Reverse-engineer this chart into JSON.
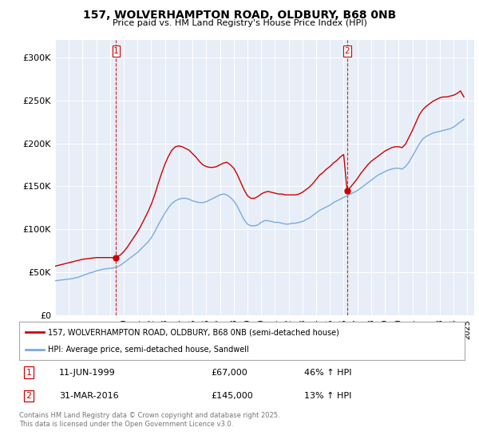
{
  "title_line1": "157, WOLVERHAMPTON ROAD, OLDBURY, B68 0NB",
  "title_line2": "Price paid vs. HM Land Registry's House Price Index (HPI)",
  "ylim": [
    0,
    320000
  ],
  "yticks": [
    0,
    50000,
    100000,
    150000,
    200000,
    250000,
    300000
  ],
  "ytick_labels": [
    "£0",
    "£50K",
    "£100K",
    "£150K",
    "£200K",
    "£250K",
    "£300K"
  ],
  "xlim_start": 1995.0,
  "xlim_end": 2025.5,
  "background_color": "#ffffff",
  "chart_bg_color": "#e8eef7",
  "grid_color": "#ffffff",
  "sale_color": "#cc0000",
  "hpi_color": "#7aaadd",
  "marker1_x": 1999.44,
  "marker1_y": 67000,
  "marker2_x": 2016.25,
  "marker2_y": 145000,
  "legend_line1": "157, WOLVERHAMPTON ROAD, OLDBURY, B68 0NB (semi-detached house)",
  "legend_line2": "HPI: Average price, semi-detached house, Sandwell",
  "footnote": "Contains HM Land Registry data © Crown copyright and database right 2025.\nThis data is licensed under the Open Government Licence v3.0.",
  "hpi_data_x": [
    1995.0,
    1995.25,
    1995.5,
    1995.75,
    1996.0,
    1996.25,
    1996.5,
    1996.75,
    1997.0,
    1997.25,
    1997.5,
    1997.75,
    1998.0,
    1998.25,
    1998.5,
    1998.75,
    1999.0,
    1999.25,
    1999.5,
    1999.75,
    2000.0,
    2000.25,
    2000.5,
    2000.75,
    2001.0,
    2001.25,
    2001.5,
    2001.75,
    2002.0,
    2002.25,
    2002.5,
    2002.75,
    2003.0,
    2003.25,
    2003.5,
    2003.75,
    2004.0,
    2004.25,
    2004.5,
    2004.75,
    2005.0,
    2005.25,
    2005.5,
    2005.75,
    2006.0,
    2006.25,
    2006.5,
    2006.75,
    2007.0,
    2007.25,
    2007.5,
    2007.75,
    2008.0,
    2008.25,
    2008.5,
    2008.75,
    2009.0,
    2009.25,
    2009.5,
    2009.75,
    2010.0,
    2010.25,
    2010.5,
    2010.75,
    2011.0,
    2011.25,
    2011.5,
    2011.75,
    2012.0,
    2012.25,
    2012.5,
    2012.75,
    2013.0,
    2013.25,
    2013.5,
    2013.75,
    2014.0,
    2014.25,
    2014.5,
    2014.75,
    2015.0,
    2015.25,
    2015.5,
    2015.75,
    2016.0,
    2016.25,
    2016.5,
    2016.75,
    2017.0,
    2017.25,
    2017.5,
    2017.75,
    2018.0,
    2018.25,
    2018.5,
    2018.75,
    2019.0,
    2019.25,
    2019.5,
    2019.75,
    2020.0,
    2020.25,
    2020.5,
    2020.75,
    2021.0,
    2021.25,
    2021.5,
    2021.75,
    2022.0,
    2022.25,
    2022.5,
    2022.75,
    2023.0,
    2023.25,
    2023.5,
    2023.75,
    2024.0,
    2024.25,
    2024.5,
    2024.75
  ],
  "hpi_data_y": [
    40000,
    40500,
    41000,
    41500,
    42000,
    42500,
    43500,
    44500,
    46000,
    47500,
    49000,
    50000,
    51500,
    52500,
    53500,
    54000,
    54500,
    55000,
    56000,
    58000,
    61000,
    64000,
    67000,
    70000,
    73000,
    77000,
    81000,
    85000,
    90000,
    97000,
    105000,
    112000,
    119000,
    125000,
    130000,
    133000,
    135000,
    136000,
    136000,
    135000,
    133000,
    132000,
    131000,
    131000,
    132000,
    134000,
    136000,
    138000,
    140000,
    141000,
    140000,
    137000,
    133000,
    127000,
    119000,
    111000,
    106000,
    104000,
    104000,
    105000,
    108000,
    110000,
    110000,
    109000,
    108000,
    108000,
    107000,
    106000,
    106000,
    107000,
    107000,
    108000,
    109000,
    111000,
    113000,
    116000,
    119000,
    122000,
    124000,
    126000,
    128000,
    131000,
    133000,
    135000,
    137000,
    139000,
    141000,
    143000,
    145000,
    148000,
    151000,
    154000,
    157000,
    160000,
    163000,
    165000,
    167000,
    169000,
    170000,
    171000,
    171000,
    170000,
    173000,
    178000,
    185000,
    192000,
    199000,
    205000,
    208000,
    210000,
    212000,
    213000,
    214000,
    215000,
    216000,
    217000,
    219000,
    222000,
    225000,
    228000
  ],
  "sale_data_x": [
    1995.0,
    1995.25,
    1995.5,
    1995.75,
    1996.0,
    1996.25,
    1996.5,
    1996.75,
    1997.0,
    1997.25,
    1997.5,
    1997.75,
    1998.0,
    1998.25,
    1998.5,
    1998.75,
    1999.0,
    1999.25,
    1999.44,
    1999.75,
    2000.0,
    2000.25,
    2000.5,
    2000.75,
    2001.0,
    2001.25,
    2001.5,
    2001.75,
    2002.0,
    2002.25,
    2002.5,
    2002.75,
    2003.0,
    2003.25,
    2003.5,
    2003.75,
    2004.0,
    2004.25,
    2004.5,
    2004.75,
    2005.0,
    2005.25,
    2005.5,
    2005.75,
    2006.0,
    2006.25,
    2006.5,
    2006.75,
    2007.0,
    2007.25,
    2007.5,
    2007.75,
    2008.0,
    2008.25,
    2008.5,
    2008.75,
    2009.0,
    2009.25,
    2009.5,
    2009.75,
    2010.0,
    2010.25,
    2010.5,
    2010.75,
    2011.0,
    2011.25,
    2011.5,
    2011.75,
    2012.0,
    2012.25,
    2012.5,
    2012.75,
    2013.0,
    2013.25,
    2013.5,
    2013.75,
    2014.0,
    2014.25,
    2014.5,
    2014.75,
    2015.0,
    2015.25,
    2015.5,
    2015.75,
    2016.0,
    2016.25,
    2016.5,
    2016.75,
    2017.0,
    2017.25,
    2017.5,
    2017.75,
    2018.0,
    2018.25,
    2018.5,
    2018.75,
    2019.0,
    2019.25,
    2019.5,
    2019.75,
    2020.0,
    2020.25,
    2020.5,
    2020.75,
    2021.0,
    2021.25,
    2021.5,
    2021.75,
    2022.0,
    2022.25,
    2022.5,
    2022.75,
    2023.0,
    2023.25,
    2023.5,
    2023.75,
    2024.0,
    2024.25,
    2024.5,
    2024.75
  ],
  "sale_data_y": [
    57000,
    58000,
    59000,
    60000,
    61000,
    62000,
    63000,
    64000,
    65000,
    65500,
    66000,
    66500,
    67000,
    67000,
    67000,
    67000,
    67000,
    67000,
    67000,
    70000,
    74000,
    79000,
    85000,
    91000,
    97000,
    104000,
    112000,
    120000,
    129000,
    140000,
    153000,
    165000,
    176000,
    185000,
    192000,
    196000,
    197000,
    196000,
    194000,
    192000,
    188000,
    184000,
    179000,
    175000,
    173000,
    172000,
    172000,
    173000,
    175000,
    177000,
    178000,
    175000,
    171000,
    164000,
    155000,
    146000,
    139000,
    136000,
    136000,
    138000,
    141000,
    143000,
    144000,
    143000,
    142000,
    141000,
    141000,
    140000,
    140000,
    140000,
    140000,
    141000,
    143000,
    146000,
    149000,
    153000,
    158000,
    163000,
    166000,
    170000,
    173000,
    177000,
    180000,
    184000,
    187000,
    145000,
    149000,
    154000,
    159000,
    165000,
    170000,
    175000,
    179000,
    182000,
    185000,
    188000,
    191000,
    193000,
    195000,
    196000,
    196000,
    195000,
    199000,
    207000,
    215000,
    224000,
    233000,
    239000,
    243000,
    246000,
    249000,
    251000,
    253000,
    254000,
    254000,
    255000,
    256000,
    258000,
    261000,
    254000
  ]
}
